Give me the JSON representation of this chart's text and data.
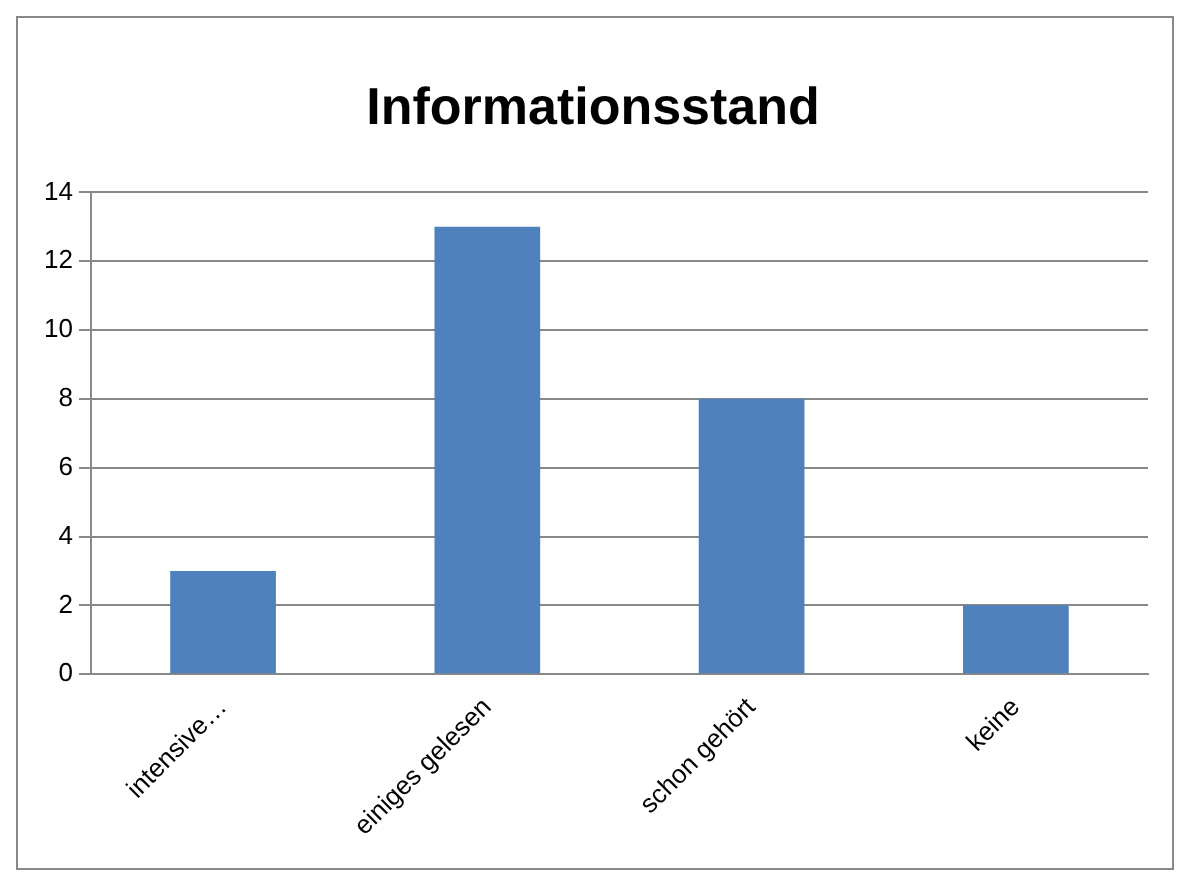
{
  "chart_data": {
    "type": "bar",
    "title": "Informationsstand",
    "categories": [
      "intensive…",
      "einiges gelesen",
      "schon gehört",
      "keine"
    ],
    "values": [
      3,
      13,
      8,
      2
    ],
    "color": "#4f81bd",
    "ylim": [
      0,
      14
    ],
    "yticks": [
      0,
      2,
      4,
      6,
      8,
      10,
      12,
      14
    ],
    "grid": "y",
    "legend": false
  }
}
